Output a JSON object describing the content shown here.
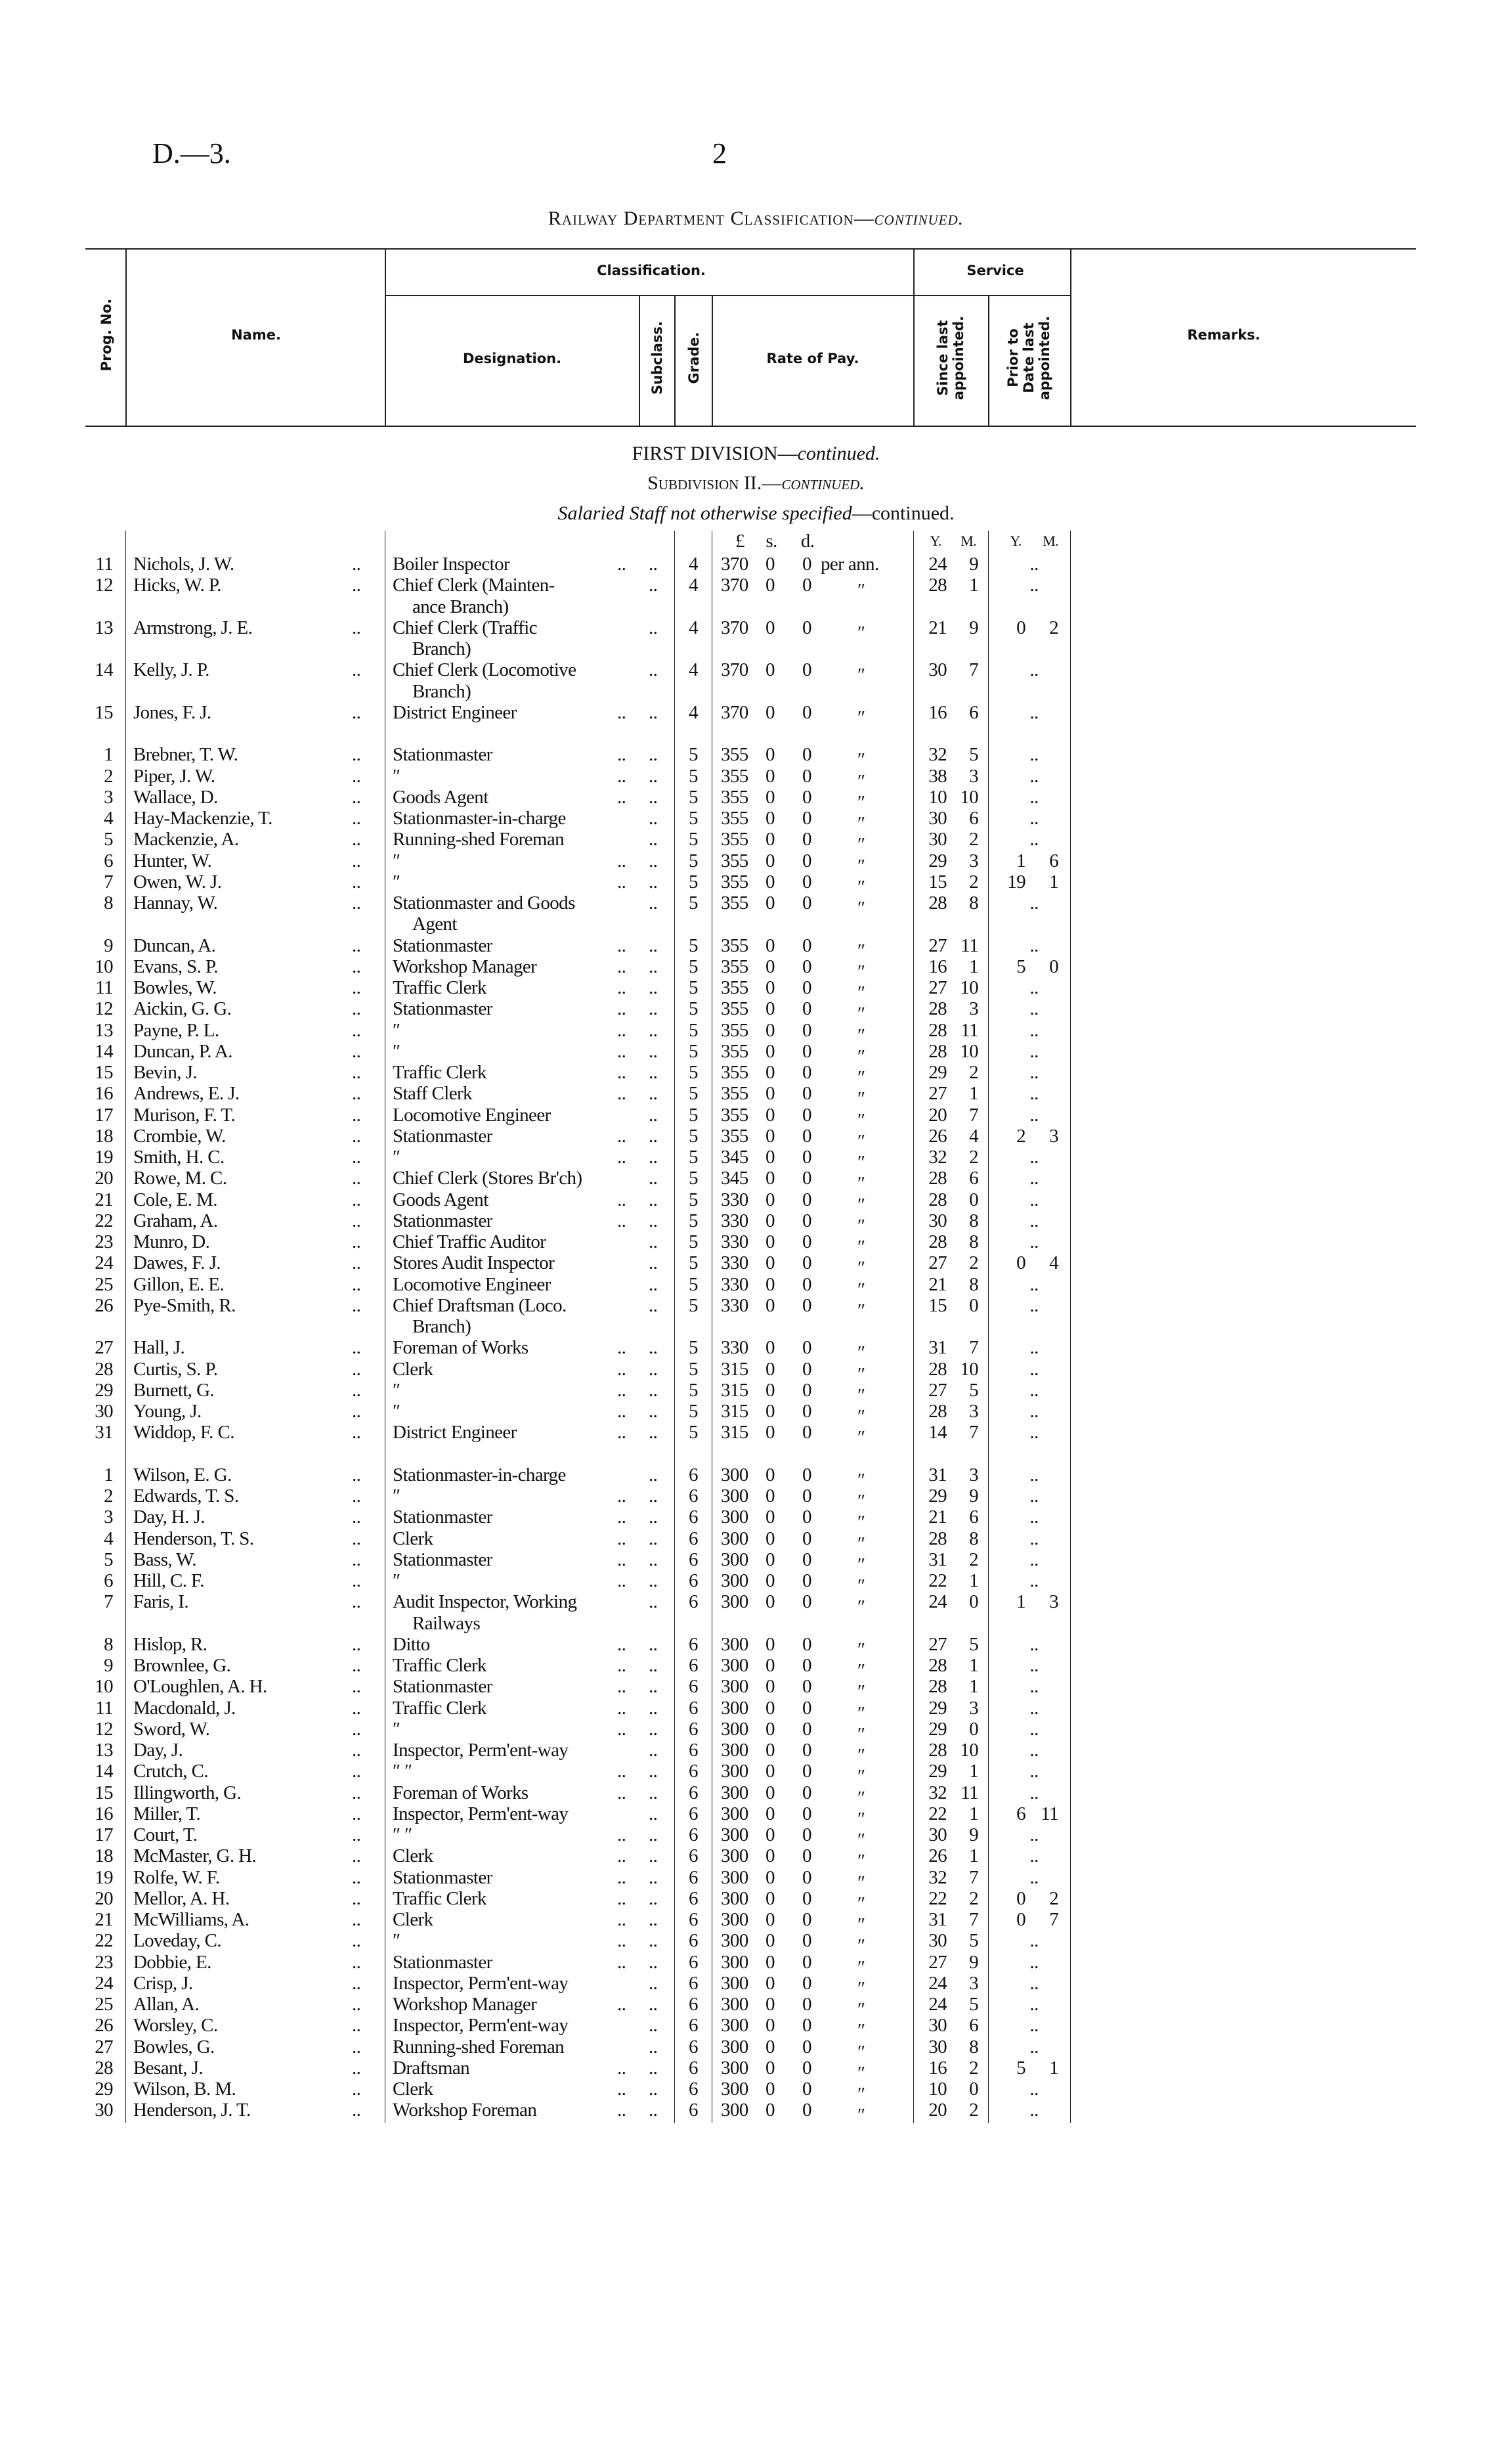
{
  "page_ref": "D.—3.",
  "page_number": "2",
  "title": {
    "main": "Railway Department Classification—",
    "cont": "continued."
  },
  "header": {
    "prog_no": "Prog. No.",
    "name": "Name.",
    "classification": "Classification.",
    "service": "Service",
    "designation": "Designation.",
    "subclass": "Subclass.",
    "grade": "Grade.",
    "rate_of_pay": "Rate of Pay.",
    "since_last": "Since last appointed.",
    "prior_to_date": "Prior to Date last appointed.",
    "remarks": "Remarks."
  },
  "section": {
    "division": "FIRST DIVISION—",
    "division_cont": "continued.",
    "subdivision": "Subdivision II.—",
    "subdivision_cont": "continued.",
    "staff": "Salaried Staff not otherwise specified",
    "staff_cont": "—continued."
  },
  "units": {
    "pounds": "£",
    "shillings": "s.",
    "pence": "d.",
    "since_y": "Y.",
    "since_m": "M.",
    "prior_y": "Y.",
    "prior_m": "M."
  },
  "groups": [
    {
      "rows": [
        [
          "11",
          "Nichols, J. W.",
          "Boiler Inspector",
          "..",
          "4",
          "370",
          "0",
          "0",
          "per ann.",
          "24",
          "9",
          ".."
        ],
        [
          "12",
          "Hicks, W. P.",
          "Chief Clerk (Mainten-|ance Branch)",
          "..",
          "4",
          "370",
          "0",
          "0",
          "″",
          "28",
          "1",
          ".."
        ],
        [
          "13",
          "Armstrong, J. E.",
          "Chief Clerk (Traffic|Branch)",
          "..",
          "4",
          "370",
          "0",
          "0",
          "″",
          "21",
          "9",
          "0 2"
        ],
        [
          "14",
          "Kelly, J. P.",
          "Chief Clerk (Locomotive|Branch)",
          "..",
          "4",
          "370",
          "0",
          "0",
          "″",
          "30",
          "7",
          ".."
        ],
        [
          "15",
          "Jones, F. J.",
          "District Engineer",
          "..",
          "4",
          "370",
          "0",
          "0",
          "″",
          "16",
          "6",
          ".."
        ]
      ]
    },
    {
      "rows": [
        [
          "1",
          "Brebner, T. W.",
          "Stationmaster",
          "..",
          "5",
          "355",
          "0",
          "0",
          "″",
          "32",
          "5",
          ".."
        ],
        [
          "2",
          "Piper, J. W.",
          "″",
          "..",
          "5",
          "355",
          "0",
          "0",
          "″",
          "38",
          "3",
          ".."
        ],
        [
          "3",
          "Wallace, D.",
          "Goods Agent",
          "..",
          "5",
          "355",
          "0",
          "0",
          "″",
          "10",
          "10",
          ".."
        ],
        [
          "4",
          "Hay-Mackenzie, T.",
          "Stationmaster-in-charge",
          "..",
          "5",
          "355",
          "0",
          "0",
          "″",
          "30",
          "6",
          ".."
        ],
        [
          "5",
          "Mackenzie, A.",
          "Running-shed Foreman",
          "..",
          "5",
          "355",
          "0",
          "0",
          "″",
          "30",
          "2",
          ".."
        ],
        [
          "6",
          "Hunter, W.",
          "″",
          "..",
          "5",
          "355",
          "0",
          "0",
          "″",
          "29",
          "3",
          "1 6"
        ],
        [
          "7",
          "Owen, W. J.",
          "″",
          "..",
          "5",
          "355",
          "0",
          "0",
          "″",
          "15",
          "2",
          "19 1"
        ],
        [
          "8",
          "Hannay, W.",
          "Stationmaster and Goods|Agent",
          "..",
          "5",
          "355",
          "0",
          "0",
          "″",
          "28",
          "8",
          ".."
        ],
        [
          "9",
          "Duncan, A.",
          "Stationmaster",
          "..",
          "5",
          "355",
          "0",
          "0",
          "″",
          "27",
          "11",
          ".."
        ],
        [
          "10",
          "Evans, S. P.",
          "Workshop Manager",
          "..",
          "5",
          "355",
          "0",
          "0",
          "″",
          "16",
          "1",
          "5 0"
        ],
        [
          "11",
          "Bowles, W.",
          "Traffic Clerk",
          "..",
          "5",
          "355",
          "0",
          "0",
          "″",
          "27",
          "10",
          ".."
        ],
        [
          "12",
          "Aickin, G. G.",
          "Stationmaster",
          "..",
          "5",
          "355",
          "0",
          "0",
          "″",
          "28",
          "3",
          ".."
        ],
        [
          "13",
          "Payne, P. L.",
          "″",
          "..",
          "5",
          "355",
          "0",
          "0",
          "″",
          "28",
          "11",
          ".."
        ],
        [
          "14",
          "Duncan, P. A.",
          "″",
          "..",
          "5",
          "355",
          "0",
          "0",
          "″",
          "28",
          "10",
          ".."
        ],
        [
          "15",
          "Bevin, J.",
          "Traffic Clerk",
          "..",
          "5",
          "355",
          "0",
          "0",
          "″",
          "29",
          "2",
          ".."
        ],
        [
          "16",
          "Andrews, E. J.",
          "Staff Clerk",
          "..",
          "5",
          "355",
          "0",
          "0",
          "″",
          "27",
          "1",
          ".."
        ],
        [
          "17",
          "Murison, F. T.",
          "Locomotive Engineer",
          "..",
          "5",
          "355",
          "0",
          "0",
          "″",
          "20",
          "7",
          ".."
        ],
        [
          "18",
          "Crombie, W.",
          "Stationmaster",
          "..",
          "5",
          "355",
          "0",
          "0",
          "″",
          "26",
          "4",
          "2 3"
        ],
        [
          "19",
          "Smith, H. C.",
          "″",
          "..",
          "5",
          "345",
          "0",
          "0",
          "″",
          "32",
          "2",
          ".."
        ],
        [
          "20",
          "Rowe, M. C.",
          "Chief Clerk (Stores Br'ch)",
          "..",
          "5",
          "345",
          "0",
          "0",
          "″",
          "28",
          "6",
          ".."
        ],
        [
          "21",
          "Cole, E. M.",
          "Goods Agent",
          "..",
          "5",
          "330",
          "0",
          "0",
          "″",
          "28",
          "0",
          ".."
        ],
        [
          "22",
          "Graham, A.",
          "Stationmaster",
          "..",
          "5",
          "330",
          "0",
          "0",
          "″",
          "30",
          "8",
          ".."
        ],
        [
          "23",
          "Munro, D.",
          "Chief Traffic Auditor",
          "..",
          "5",
          "330",
          "0",
          "0",
          "″",
          "28",
          "8",
          ".."
        ],
        [
          "24",
          "Dawes, F. J.",
          "Stores Audit Inspector",
          "..",
          "5",
          "330",
          "0",
          "0",
          "″",
          "27",
          "2",
          "0 4"
        ],
        [
          "25",
          "Gillon, E. E.",
          "Locomotive Engineer",
          "..",
          "5",
          "330",
          "0",
          "0",
          "″",
          "21",
          "8",
          ".."
        ],
        [
          "26",
          "Pye-Smith, R.",
          "Chief Draftsman (Loco.|Branch)",
          "..",
          "5",
          "330",
          "0",
          "0",
          "″",
          "15",
          "0",
          ".."
        ],
        [
          "27",
          "Hall, J.",
          "Foreman of Works",
          "..",
          "5",
          "330",
          "0",
          "0",
          "″",
          "31",
          "7",
          ".."
        ],
        [
          "28",
          "Curtis, S. P.",
          "Clerk",
          "..",
          "5",
          "315",
          "0",
          "0",
          "″",
          "28",
          "10",
          ".."
        ],
        [
          "29",
          "Burnett, G.",
          "″",
          "..",
          "5",
          "315",
          "0",
          "0",
          "″",
          "27",
          "5",
          ".."
        ],
        [
          "30",
          "Young, J.",
          "″",
          "..",
          "5",
          "315",
          "0",
          "0",
          "″",
          "28",
          "3",
          ".."
        ],
        [
          "31",
          "Widdop, F. C.",
          "District Engineer",
          "..",
          "5",
          "315",
          "0",
          "0",
          "″",
          "14",
          "7",
          ".."
        ]
      ]
    },
    {
      "rows": [
        [
          "1",
          "Wilson, E. G.",
          "Stationmaster-in-charge",
          "..",
          "6",
          "300",
          "0",
          "0",
          "″",
          "31",
          "3",
          ".."
        ],
        [
          "2",
          "Edwards, T. S.",
          "″",
          "..",
          "6",
          "300",
          "0",
          "0",
          "″",
          "29",
          "9",
          ".."
        ],
        [
          "3",
          "Day, H. J.",
          "Stationmaster",
          "..",
          "6",
          "300",
          "0",
          "0",
          "″",
          "21",
          "6",
          ".."
        ],
        [
          "4",
          "Henderson, T. S.",
          "Clerk",
          "..",
          "6",
          "300",
          "0",
          "0",
          "″",
          "28",
          "8",
          ".."
        ],
        [
          "5",
          "Bass, W.",
          "Stationmaster",
          "..",
          "6",
          "300",
          "0",
          "0",
          "″",
          "31",
          "2",
          ".."
        ],
        [
          "6",
          "Hill, C. F.",
          "″",
          "..",
          "6",
          "300",
          "0",
          "0",
          "″",
          "22",
          "1",
          ".."
        ],
        [
          "7",
          "Faris, I.",
          "Audit Inspector, Working|Railways",
          "..",
          "6",
          "300",
          "0",
          "0",
          "″",
          "24",
          "0",
          "1 3"
        ],
        [
          "8",
          "Hislop, R.",
          "Ditto",
          "..",
          "6",
          "300",
          "0",
          "0",
          "″",
          "27",
          "5",
          ".."
        ],
        [
          "9",
          "Brownlee, G.",
          "Traffic Clerk",
          "..",
          "6",
          "300",
          "0",
          "0",
          "″",
          "28",
          "1",
          ".."
        ],
        [
          "10",
          "O'Loughlen, A. H.",
          "Stationmaster",
          "..",
          "6",
          "300",
          "0",
          "0",
          "″",
          "28",
          "1",
          ".."
        ],
        [
          "11",
          "Macdonald, J.",
          "Traffic Clerk",
          "..",
          "6",
          "300",
          "0",
          "0",
          "″",
          "29",
          "3",
          ".."
        ],
        [
          "12",
          "Sword, W.",
          "″",
          "..",
          "6",
          "300",
          "0",
          "0",
          "″",
          "29",
          "0",
          ".."
        ],
        [
          "13",
          "Day, J.",
          "Inspector, Perm'ent-way",
          "..",
          "6",
          "300",
          "0",
          "0",
          "″",
          "28",
          "10",
          ".."
        ],
        [
          "14",
          "Crutch, C.",
          "″        ″",
          "..",
          "6",
          "300",
          "0",
          "0",
          "″",
          "29",
          "1",
          ".."
        ],
        [
          "15",
          "Illingworth, G.",
          "Foreman of Works",
          "..",
          "6",
          "300",
          "0",
          "0",
          "″",
          "32",
          "11",
          ".."
        ],
        [
          "16",
          "Miller, T.",
          "Inspector, Perm'ent-way",
          "..",
          "6",
          "300",
          "0",
          "0",
          "″",
          "22",
          "1",
          "6 11"
        ],
        [
          "17",
          "Court, T.",
          "″        ″",
          "..",
          "6",
          "300",
          "0",
          "0",
          "″",
          "30",
          "9",
          ".."
        ],
        [
          "18",
          "McMaster, G. H.",
          "Clerk",
          "..",
          "6",
          "300",
          "0",
          "0",
          "″",
          "26",
          "1",
          ".."
        ],
        [
          "19",
          "Rolfe, W. F.",
          "Stationmaster",
          "..",
          "6",
          "300",
          "0",
          "0",
          "″",
          "32",
          "7",
          ".."
        ],
        [
          "20",
          "Mellor, A. H.",
          "Traffic Clerk",
          "..",
          "6",
          "300",
          "0",
          "0",
          "″",
          "22",
          "2",
          "0 2"
        ],
        [
          "21",
          "McWilliams, A.",
          "Clerk",
          "..",
          "6",
          "300",
          "0",
          "0",
          "″",
          "31",
          "7",
          "0 7"
        ],
        [
          "22",
          "Loveday, C.",
          "″",
          "..",
          "6",
          "300",
          "0",
          "0",
          "″",
          "30",
          "5",
          ".."
        ],
        [
          "23",
          "Dobbie, E.",
          "Stationmaster",
          "..",
          "6",
          "300",
          "0",
          "0",
          "″",
          "27",
          "9",
          ".."
        ],
        [
          "24",
          "Crisp, J.",
          "Inspector, Perm'ent-way",
          "..",
          "6",
          "300",
          "0",
          "0",
          "″",
          "24",
          "3",
          ".."
        ],
        [
          "25",
          "Allan, A.",
          "Workshop Manager",
          "..",
          "6",
          "300",
          "0",
          "0",
          "″",
          "24",
          "5",
          ".."
        ],
        [
          "26",
          "Worsley, C.",
          "Inspector, Perm'ent-way",
          "..",
          "6",
          "300",
          "0",
          "0",
          "″",
          "30",
          "6",
          ".."
        ],
        [
          "27",
          "Bowles, G.",
          "Running-shed Foreman",
          "..",
          "6",
          "300",
          "0",
          "0",
          "″",
          "30",
          "8",
          ".."
        ],
        [
          "28",
          "Besant, J.",
          "Draftsman",
          "..",
          "6",
          "300",
          "0",
          "0",
          "″",
          "16",
          "2",
          "5 1"
        ],
        [
          "29",
          "Wilson, B. M.",
          "Clerk",
          "..",
          "6",
          "300",
          "0",
          "0",
          "″",
          "10",
          "0",
          ".."
        ],
        [
          "30",
          "Henderson, J. T.",
          "Workshop Foreman",
          "..",
          "6",
          "300",
          "0",
          "0",
          "″",
          "20",
          "2",
          ".."
        ]
      ]
    }
  ]
}
